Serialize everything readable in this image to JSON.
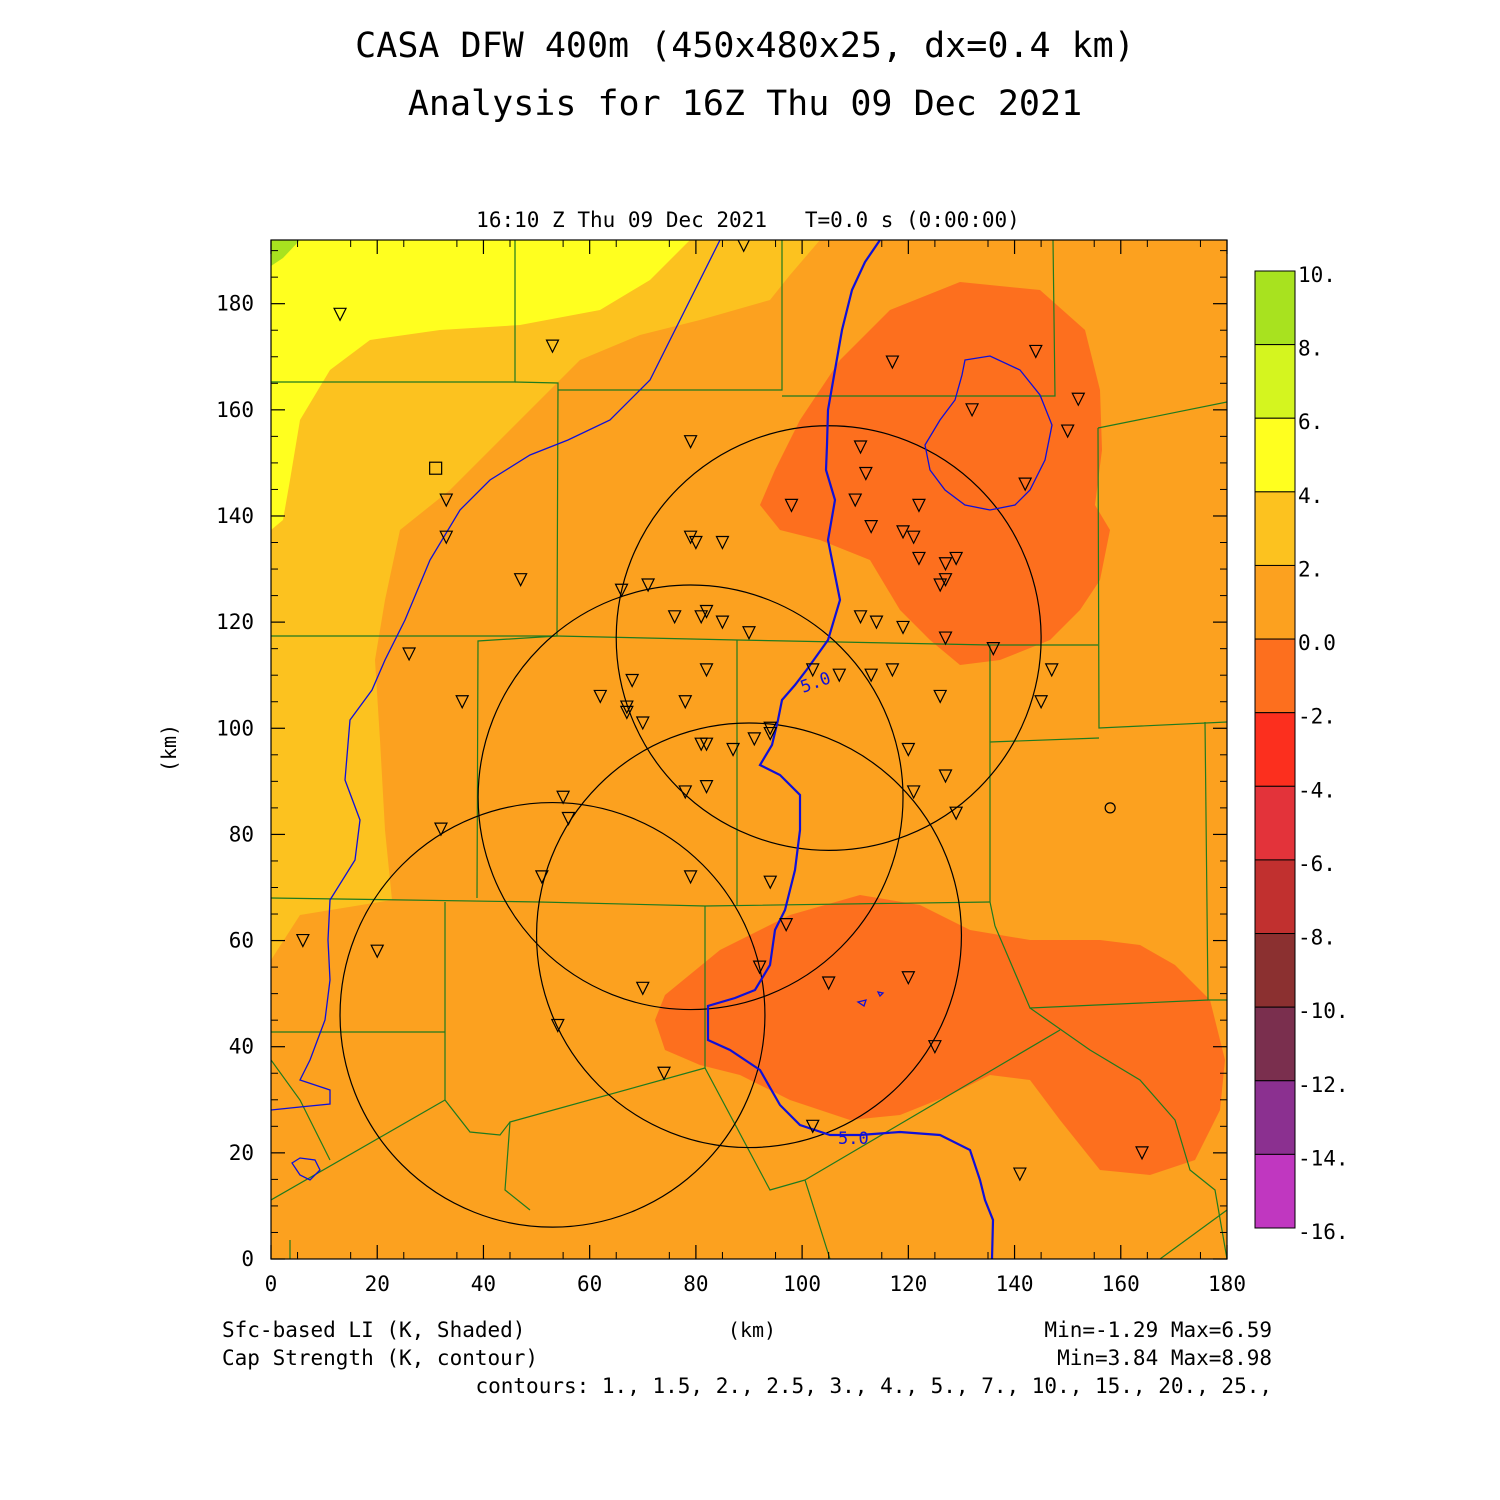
{
  "title_line1": "CASA DFW 400m (450x480x25, dx=0.4 km)",
  "title_line2": "Analysis for 16Z Thu 09 Dec 2021",
  "subtitle": "16:10 Z Thu 09 Dec 2021   T=0.0 s (0:00:00)",
  "colors": {
    "band_m2_0": "#fd6f1e",
    "band_0_2": "#fca11f",
    "band_2_4": "#fcc21f",
    "band_4_6": "#ffff1f",
    "band_6_8": "#d4f51f",
    "band_8_10": "#a8e21f",
    "cap_contour": "#1010d8",
    "county_lines": "#1f7a1f",
    "range_rings": "#000000"
  },
  "chart_data": {
    "type": "heatmap",
    "xlabel": "(km)",
    "ylabel": "(km)",
    "xlim": [
      0,
      180
    ],
    "ylim": [
      0,
      192
    ],
    "x_ticks": [
      "0",
      "20",
      "40",
      "60",
      "80",
      "100",
      "120",
      "140",
      "160",
      "180"
    ],
    "y_ticks": [
      "0",
      "20",
      "40",
      "60",
      "80",
      "100",
      "120",
      "140",
      "160",
      "180"
    ],
    "shaded_field": "Sfc-based LI (K, Shaded)",
    "contour_field": "Cap Strength (K, contour)",
    "shaded_stats": "Min=-1.29 Max=6.59",
    "contour_stats": "Min=3.84 Max=8.98",
    "contour_levels_text": "contours: 1., 1.5, 2., 2.5, 3., 4., 5., 7., 10., 15., 20., 25.,",
    "contour_labels": [
      "5.0",
      "5.0"
    ],
    "colorbar": {
      "labels": [
        "10.",
        "8.",
        "6.",
        "4.",
        "2.",
        "0.0",
        "-2.",
        "-4.",
        "-6.",
        "-8.",
        "-10.",
        "-12.",
        "-14.",
        "-16."
      ],
      "colors": [
        "#a8e21f",
        "#d4f51f",
        "#ffff1f",
        "#fcc21f",
        "#fca11f",
        "#fd6f1e",
        "#fc2f1e",
        "#e3333a",
        "#c1302f",
        "#8b3030",
        "#7a2f4e",
        "#8b3090",
        "#c037c0",
        "#d63ce0"
      ]
    },
    "range_rings": [
      {
        "center_x": 105,
        "center_y": 117,
        "radius": 40
      },
      {
        "center_x": 79,
        "center_y": 87,
        "radius": 40
      },
      {
        "center_x": 90,
        "center_y": 61,
        "radius": 40
      },
      {
        "center_x": 53,
        "center_y": 46,
        "radius": 40
      }
    ],
    "station_markers": [
      [
        13,
        178
      ],
      [
        53,
        172
      ],
      [
        89,
        191
      ],
      [
        117,
        169
      ],
      [
        144,
        171
      ],
      [
        152,
        162
      ],
      [
        132,
        160
      ],
      [
        150,
        156
      ],
      [
        79,
        154
      ],
      [
        111,
        153
      ],
      [
        112,
        148
      ],
      [
        142,
        146
      ],
      [
        110,
        143
      ],
      [
        98,
        142
      ],
      [
        122,
        142
      ],
      [
        33,
        143
      ],
      [
        113,
        138
      ],
      [
        119,
        137
      ],
      [
        121,
        136
      ],
      [
        33,
        136
      ],
      [
        79,
        136
      ],
      [
        80,
        135
      ],
      [
        85,
        135
      ],
      [
        129,
        132
      ],
      [
        122,
        132
      ],
      [
        127,
        131
      ],
      [
        127,
        128
      ],
      [
        126,
        127
      ],
      [
        47,
        128
      ],
      [
        66,
        126
      ],
      [
        71,
        127
      ],
      [
        76,
        121
      ],
      [
        81,
        121
      ],
      [
        82,
        122
      ],
      [
        85,
        120
      ],
      [
        90,
        118
      ],
      [
        111,
        121
      ],
      [
        114,
        120
      ],
      [
        119,
        119
      ],
      [
        127,
        117
      ],
      [
        136,
        115
      ],
      [
        26,
        114
      ],
      [
        102,
        111
      ],
      [
        107,
        110
      ],
      [
        82,
        111
      ],
      [
        113,
        110
      ],
      [
        117,
        111
      ],
      [
        147,
        111
      ],
      [
        62,
        106
      ],
      [
        68,
        109
      ],
      [
        36,
        105
      ],
      [
        78,
        105
      ],
      [
        126,
        106
      ],
      [
        145,
        105
      ],
      [
        67,
        103
      ],
      [
        67,
        104
      ],
      [
        70,
        101
      ],
      [
        94,
        100
      ],
      [
        94,
        99
      ],
      [
        91,
        98
      ],
      [
        81,
        97
      ],
      [
        82,
        97
      ],
      [
        87,
        96
      ],
      [
        120,
        96
      ],
      [
        127,
        91
      ],
      [
        78,
        88
      ],
      [
        82,
        89
      ],
      [
        121,
        88
      ],
      [
        129,
        84
      ],
      [
        55,
        87
      ],
      [
        56,
        83
      ],
      [
        32,
        81
      ],
      [
        51,
        72
      ],
      [
        79,
        72
      ],
      [
        94,
        71
      ],
      [
        97,
        63
      ],
      [
        6,
        60
      ],
      [
        20,
        58
      ],
      [
        92,
        55
      ],
      [
        120,
        53
      ],
      [
        105,
        52
      ],
      [
        70,
        51
      ],
      [
        54,
        44
      ],
      [
        125,
        40
      ],
      [
        74,
        35
      ],
      [
        102,
        25
      ],
      [
        164,
        20
      ],
      [
        141,
        16
      ]
    ],
    "square_marker": [
      31,
      149
    ],
    "circle_marker": [
      158,
      85
    ]
  }
}
